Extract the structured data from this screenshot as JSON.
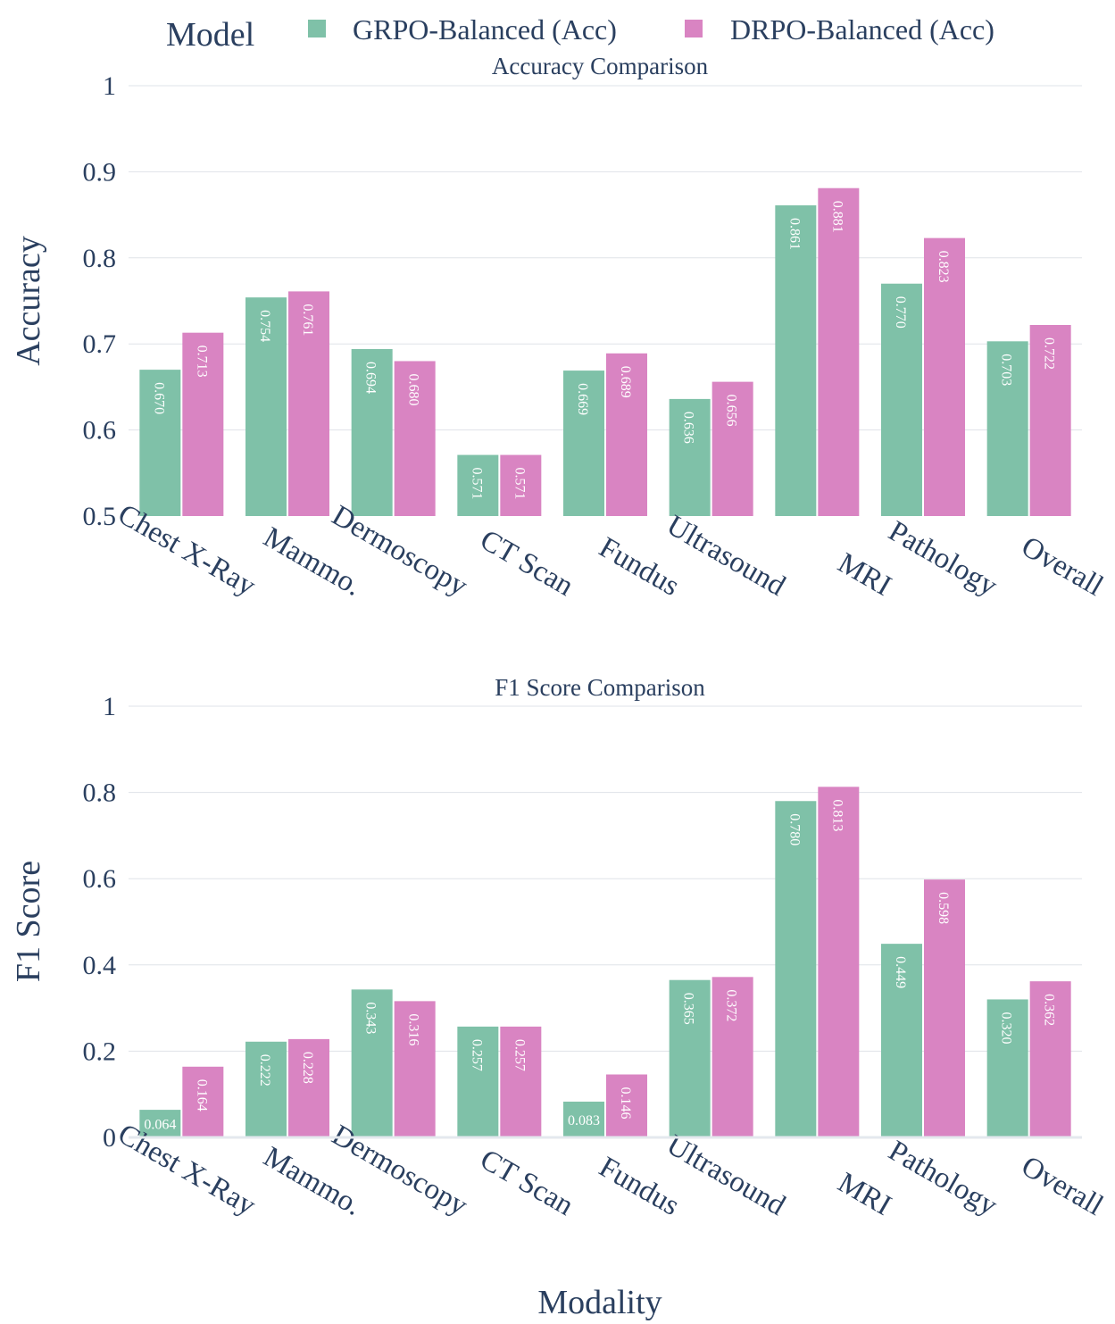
{
  "legend": {
    "title": "Model",
    "entries": [
      "GRPO-Balanced (Acc)",
      "DRPO-Balanced (Acc)"
    ]
  },
  "x_title": "Modality",
  "chart_data": [
    {
      "type": "bar",
      "title": "Accuracy Comparison",
      "xlabel": "Modality",
      "ylabel": "Accuracy",
      "ylim": [
        0.5,
        1
      ],
      "yticks": [
        0.5,
        0.6,
        0.7,
        0.8,
        0.9,
        1
      ],
      "ytick_labels": [
        "0.5",
        "0.6",
        "0.7",
        "0.8",
        "0.9",
        "1"
      ],
      "categories": [
        "Chest X-Ray",
        "Mammo.",
        "Dermoscopy",
        "CT Scan",
        "Fundus",
        "Ultrasound",
        "MRI",
        "Pathology",
        "Overall"
      ],
      "series": [
        {
          "name": "GRPO-Balanced (Acc)",
          "color": "#7fc1a8",
          "values": [
            0.67,
            0.754,
            0.694,
            0.571,
            0.669,
            0.636,
            0.861,
            0.77,
            0.703
          ],
          "labels": [
            "0.670",
            "0.754",
            "0.694",
            "0.571",
            "0.669",
            "0.636",
            "0.861",
            "0.770",
            "0.703"
          ]
        },
        {
          "name": "DRPO-Balanced (Acc)",
          "color": "#d984c2",
          "values": [
            0.713,
            0.761,
            0.68,
            0.571,
            0.689,
            0.656,
            0.881,
            0.823,
            0.722
          ],
          "labels": [
            "0.713",
            "0.761",
            "0.680",
            "0.571",
            "0.689",
            "0.656",
            "0.881",
            "0.823",
            "0.722"
          ]
        }
      ]
    },
    {
      "type": "bar",
      "title": "F1 Score Comparison",
      "xlabel": "Modality",
      "ylabel": "F1 Score",
      "ylim": [
        0,
        1
      ],
      "yticks": [
        0,
        0.2,
        0.4,
        0.6,
        0.8,
        1
      ],
      "ytick_labels": [
        "0",
        "0.2",
        "0.4",
        "0.6",
        "0.8",
        "1"
      ],
      "categories": [
        "Chest X-Ray",
        "Mammo.",
        "Dermoscopy",
        "CT Scan",
        "Fundus",
        "Ultrasound",
        "MRI",
        "Pathology",
        "Overall"
      ],
      "series": [
        {
          "name": "GRPO-Balanced (Acc)",
          "color": "#7fc1a8",
          "values": [
            0.064,
            0.222,
            0.343,
            0.257,
            0.083,
            0.365,
            0.78,
            0.449,
            0.32
          ],
          "labels": [
            "0.064",
            "0.222",
            "0.343",
            "0.257",
            "0.083",
            "0.365",
            "0.780",
            "0.449",
            "0.320"
          ]
        },
        {
          "name": "DRPO-Balanced (Acc)",
          "color": "#d984c2",
          "values": [
            0.164,
            0.228,
            0.316,
            0.257,
            0.146,
            0.372,
            0.813,
            0.598,
            0.362
          ],
          "labels": [
            "0.164",
            "0.228",
            "0.316",
            "0.257",
            "0.146",
            "0.372",
            "0.813",
            "0.598",
            "0.362"
          ]
        }
      ]
    }
  ]
}
